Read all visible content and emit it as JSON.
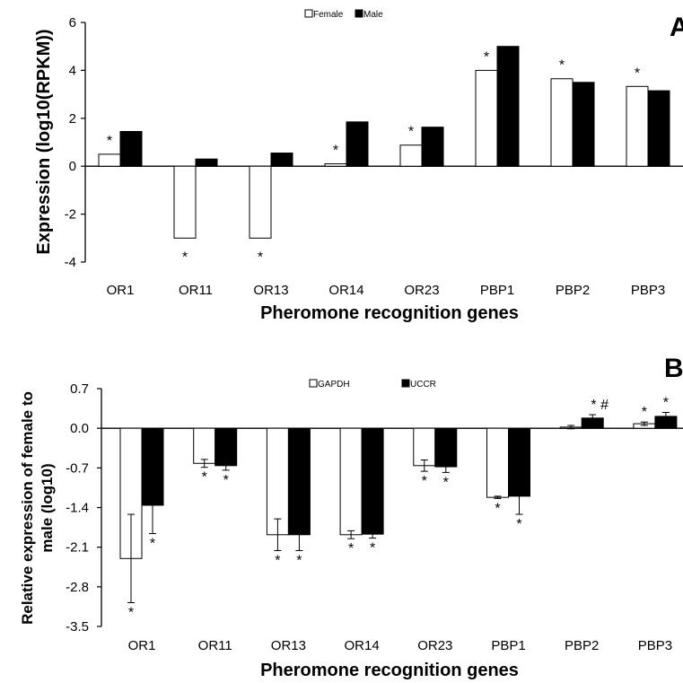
{
  "chart_data": [
    {
      "type": "bar",
      "panel_label": "A",
      "xlabel": "Pheromone recognition genes",
      "ylabel": "Expression (log10(RPKM))",
      "ylim": [
        -4,
        6
      ],
      "yticks": [
        "-4",
        "-2",
        "0",
        "2",
        "4",
        "6"
      ],
      "legend_placement": "top-center",
      "categories": [
        "OR1",
        "OR11",
        "OR13",
        "OR14",
        "OR23",
        "PBP1",
        "PBP2",
        "PBP3"
      ],
      "series": [
        {
          "name": "Female",
          "color": "#ffffff",
          "values": [
            0.5,
            -3.0,
            -3.0,
            0.1,
            0.88,
            4.0,
            3.65,
            3.33
          ]
        },
        {
          "name": "Male",
          "color": "#000000",
          "values": [
            1.45,
            0.3,
            0.55,
            1.85,
            1.63,
            5.0,
            3.5,
            3.15
          ]
        }
      ],
      "annotations": [
        {
          "category": "OR1",
          "text": "*"
        },
        {
          "category": "OR11",
          "text": "*"
        },
        {
          "category": "OR13",
          "text": "*"
        },
        {
          "category": "OR14",
          "text": "*"
        },
        {
          "category": "OR23",
          "text": "*"
        },
        {
          "category": "PBP1",
          "text": "*"
        },
        {
          "category": "PBP2",
          "text": "*"
        },
        {
          "category": "PBP3",
          "text": "*"
        }
      ]
    },
    {
      "type": "bar",
      "panel_label": "B",
      "xlabel": "Pheromone recognition genes",
      "ylabel_lines": [
        "Relative expression of female to",
        "male (log10)"
      ],
      "ylim": [
        -3.5,
        0.7
      ],
      "yticks": [
        "-3.5",
        "-2.8",
        "-2.1",
        "-1.4",
        "-0.7",
        "0.0",
        "0.7"
      ],
      "legend_placement": "top-center",
      "categories": [
        "OR1",
        "OR11",
        "OR13",
        "OR14",
        "OR23",
        "PBP1",
        "PBP2",
        "PBP3"
      ],
      "series": [
        {
          "name": "GAPDH",
          "color": "#ffffff",
          "values": [
            -2.3,
            -0.62,
            -1.88,
            -1.88,
            -0.66,
            -1.22,
            0.02,
            0.08
          ],
          "errors": [
            0.78,
            0.07,
            0.28,
            0.07,
            0.1,
            0.02,
            0.03,
            0.03
          ]
        },
        {
          "name": "UCCR",
          "color": "#000000",
          "values": [
            -1.36,
            -0.66,
            -1.88,
            -1.87,
            -0.68,
            -1.2,
            0.18,
            0.21
          ],
          "errors": [
            0.5,
            0.08,
            0.28,
            0.07,
            0.1,
            0.32,
            0.06,
            0.07
          ]
        }
      ],
      "annotations": [
        {
          "category": "OR1",
          "series": "GAPDH",
          "text": "*"
        },
        {
          "category": "OR1",
          "series": "UCCR",
          "text": "*"
        },
        {
          "category": "OR11",
          "series": "GAPDH",
          "text": "*"
        },
        {
          "category": "OR11",
          "series": "UCCR",
          "text": "*"
        },
        {
          "category": "OR13",
          "series": "GAPDH",
          "text": "*"
        },
        {
          "category": "OR13",
          "series": "UCCR",
          "text": "*"
        },
        {
          "category": "OR14",
          "series": "GAPDH",
          "text": "*"
        },
        {
          "category": "OR14",
          "series": "UCCR",
          "text": "*"
        },
        {
          "category": "OR23",
          "series": "GAPDH",
          "text": "*"
        },
        {
          "category": "OR23",
          "series": "UCCR",
          "text": "*"
        },
        {
          "category": "PBP1",
          "series": "GAPDH",
          "text": "*"
        },
        {
          "category": "PBP1",
          "series": "UCCR",
          "text": "*"
        },
        {
          "category": "PBP2",
          "series": "UCCR",
          "text": "* #"
        },
        {
          "category": "PBP3",
          "series": "GAPDH",
          "text": "*"
        },
        {
          "category": "PBP3",
          "series": "UCCR",
          "text": "*"
        }
      ]
    }
  ]
}
